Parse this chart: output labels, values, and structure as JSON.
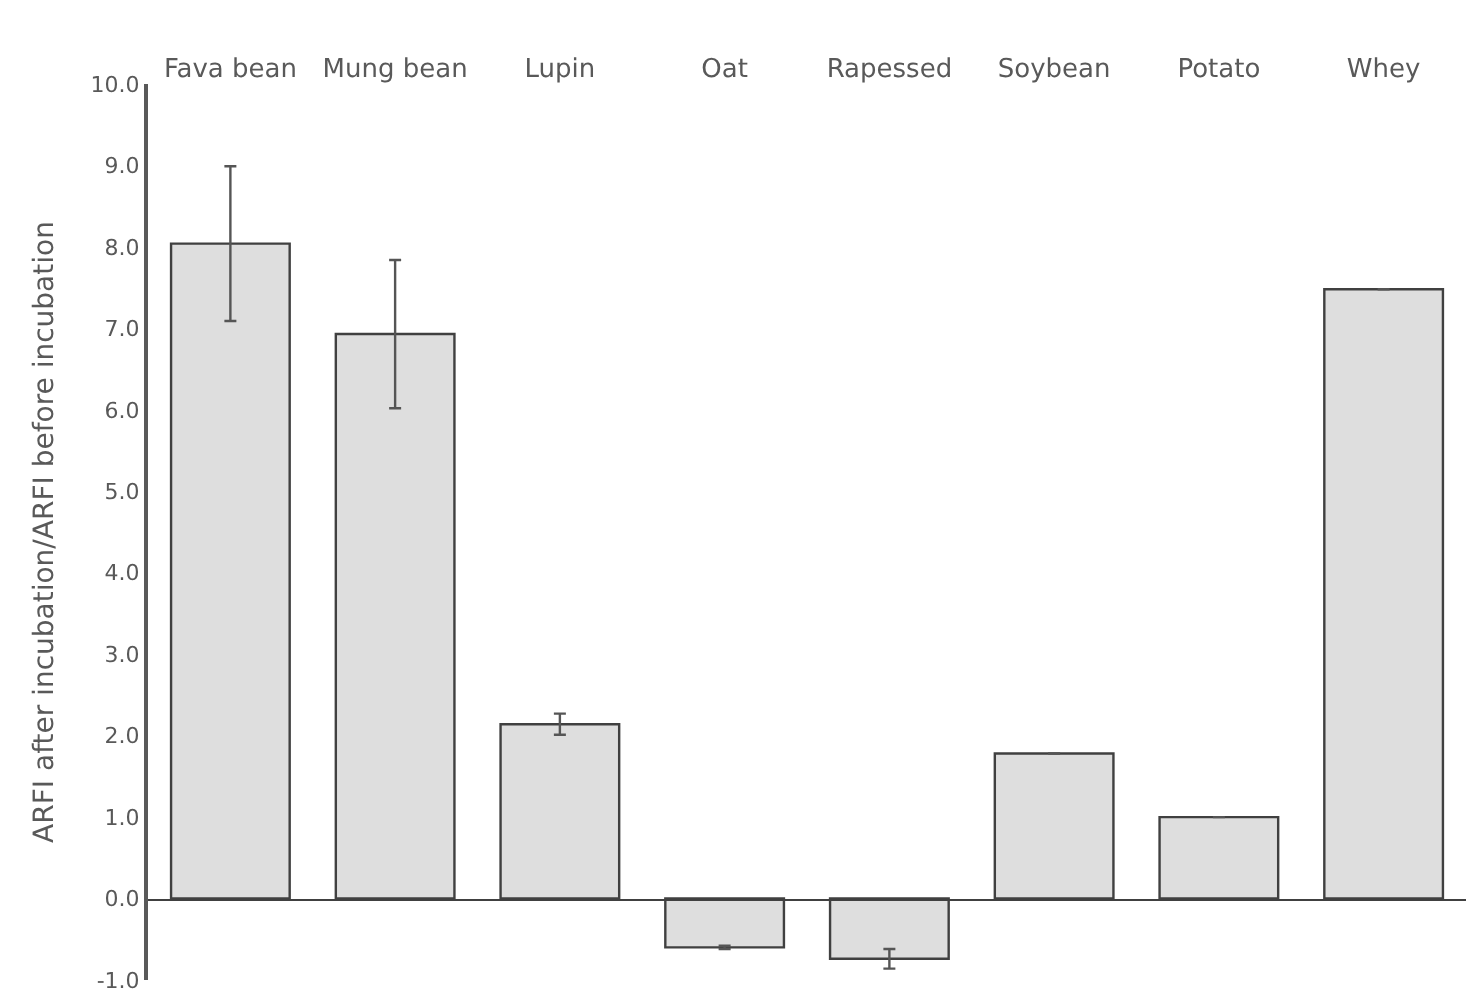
{
  "chart_data": {
    "type": "bar",
    "ylabel": "ARFI after incubation/ARFI before incubation",
    "categories": [
      "Fava bean",
      "Mung bean",
      "Lupin",
      "Oat",
      "Rapessed",
      "Soybean",
      "Potato",
      "Whey"
    ],
    "values": [
      8.04,
      6.93,
      2.14,
      -0.6,
      -0.74,
      1.78,
      1.0,
      7.48
    ],
    "errors": [
      0.95,
      0.91,
      0.13,
      0.02,
      0.12,
      null,
      null,
      null
    ],
    "color": "#dedede",
    "ylim": [
      -1.0,
      10.0
    ],
    "yticks": [
      {
        "value": -1,
        "label": "-1.0"
      },
      {
        "value": 0,
        "label": "0.0"
      },
      {
        "value": 1,
        "label": "1.0"
      },
      {
        "value": 2,
        "label": "2.0"
      },
      {
        "value": 3,
        "label": "3.0"
      },
      {
        "value": 4,
        "label": "4.0"
      },
      {
        "value": 5,
        "label": "5.0"
      },
      {
        "value": 6,
        "label": "6.0"
      },
      {
        "value": 7,
        "label": "7.0"
      },
      {
        "value": 8,
        "label": "8.0"
      },
      {
        "value": 9,
        "label": "9.0"
      },
      {
        "value": 10,
        "label": "10.0"
      }
    ],
    "legend": false
  }
}
